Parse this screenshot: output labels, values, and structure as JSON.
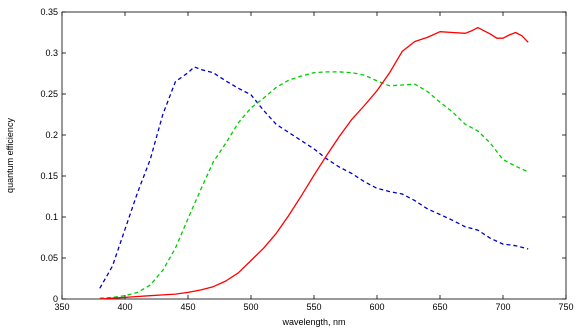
{
  "chart_data": {
    "type": "line",
    "title": "",
    "xlabel": "wavelength, nm",
    "ylabel": "quantum efficiency",
    "xlim": [
      350,
      750
    ],
    "ylim": [
      0,
      0.35
    ],
    "xticks": [
      350,
      400,
      450,
      500,
      550,
      600,
      650,
      700,
      750
    ],
    "yticks": [
      0,
      0.05,
      0.1,
      0.15,
      0.2,
      0.25,
      0.3,
      0.35
    ],
    "ytick_labels": [
      "0",
      "0.05",
      "0.1",
      "0.15",
      "0.2",
      "0.25",
      "0.3",
      "0.35"
    ],
    "grid": false,
    "series": [
      {
        "color": "#0000cc",
        "style": "dashed",
        "x": [
          380,
          390,
          400,
          410,
          420,
          430,
          440,
          450,
          455,
          460,
          470,
          480,
          490,
          500,
          510,
          520,
          530,
          540,
          550,
          560,
          570,
          580,
          590,
          600,
          610,
          620,
          630,
          640,
          650,
          660,
          670,
          680,
          690,
          700,
          710,
          720
        ],
        "y": [
          0.013,
          0.04,
          0.085,
          0.13,
          0.17,
          0.225,
          0.265,
          0.276,
          0.283,
          0.28,
          0.276,
          0.266,
          0.257,
          0.249,
          0.23,
          0.213,
          0.203,
          0.193,
          0.183,
          0.171,
          0.161,
          0.153,
          0.143,
          0.135,
          0.131,
          0.128,
          0.12,
          0.11,
          0.103,
          0.096,
          0.088,
          0.084,
          0.074,
          0.067,
          0.065,
          0.061
        ]
      },
      {
        "color": "#00cc00",
        "style": "dashed",
        "x": [
          380,
          390,
          400,
          410,
          420,
          430,
          440,
          450,
          460,
          470,
          480,
          490,
          500,
          510,
          520,
          530,
          540,
          550,
          560,
          570,
          580,
          590,
          600,
          610,
          620,
          630,
          640,
          650,
          660,
          670,
          680,
          690,
          700,
          710,
          720
        ],
        "y": [
          0.001,
          0.002,
          0.004,
          0.008,
          0.017,
          0.035,
          0.062,
          0.098,
          0.133,
          0.167,
          0.19,
          0.215,
          0.233,
          0.245,
          0.258,
          0.267,
          0.272,
          0.276,
          0.277,
          0.277,
          0.276,
          0.273,
          0.266,
          0.26,
          0.261,
          0.262,
          0.253,
          0.24,
          0.228,
          0.213,
          0.205,
          0.19,
          0.17,
          0.162,
          0.155
        ]
      },
      {
        "color": "#ff0000",
        "style": "solid",
        "x": [
          380,
          390,
          400,
          410,
          420,
          430,
          440,
          450,
          460,
          470,
          480,
          490,
          500,
          510,
          520,
          530,
          540,
          550,
          560,
          570,
          580,
          590,
          600,
          610,
          620,
          630,
          640,
          650,
          660,
          670,
          675,
          680,
          690,
          695,
          700,
          705,
          710,
          715,
          720
        ],
        "y": [
          0.0,
          0.001,
          0.002,
          0.003,
          0.004,
          0.005,
          0.006,
          0.008,
          0.011,
          0.015,
          0.022,
          0.032,
          0.047,
          0.062,
          0.08,
          0.102,
          0.126,
          0.151,
          0.175,
          0.198,
          0.219,
          0.236,
          0.254,
          0.276,
          0.302,
          0.314,
          0.319,
          0.326,
          0.325,
          0.324,
          0.327,
          0.331,
          0.323,
          0.318,
          0.318,
          0.322,
          0.325,
          0.321,
          0.313
        ]
      }
    ]
  }
}
